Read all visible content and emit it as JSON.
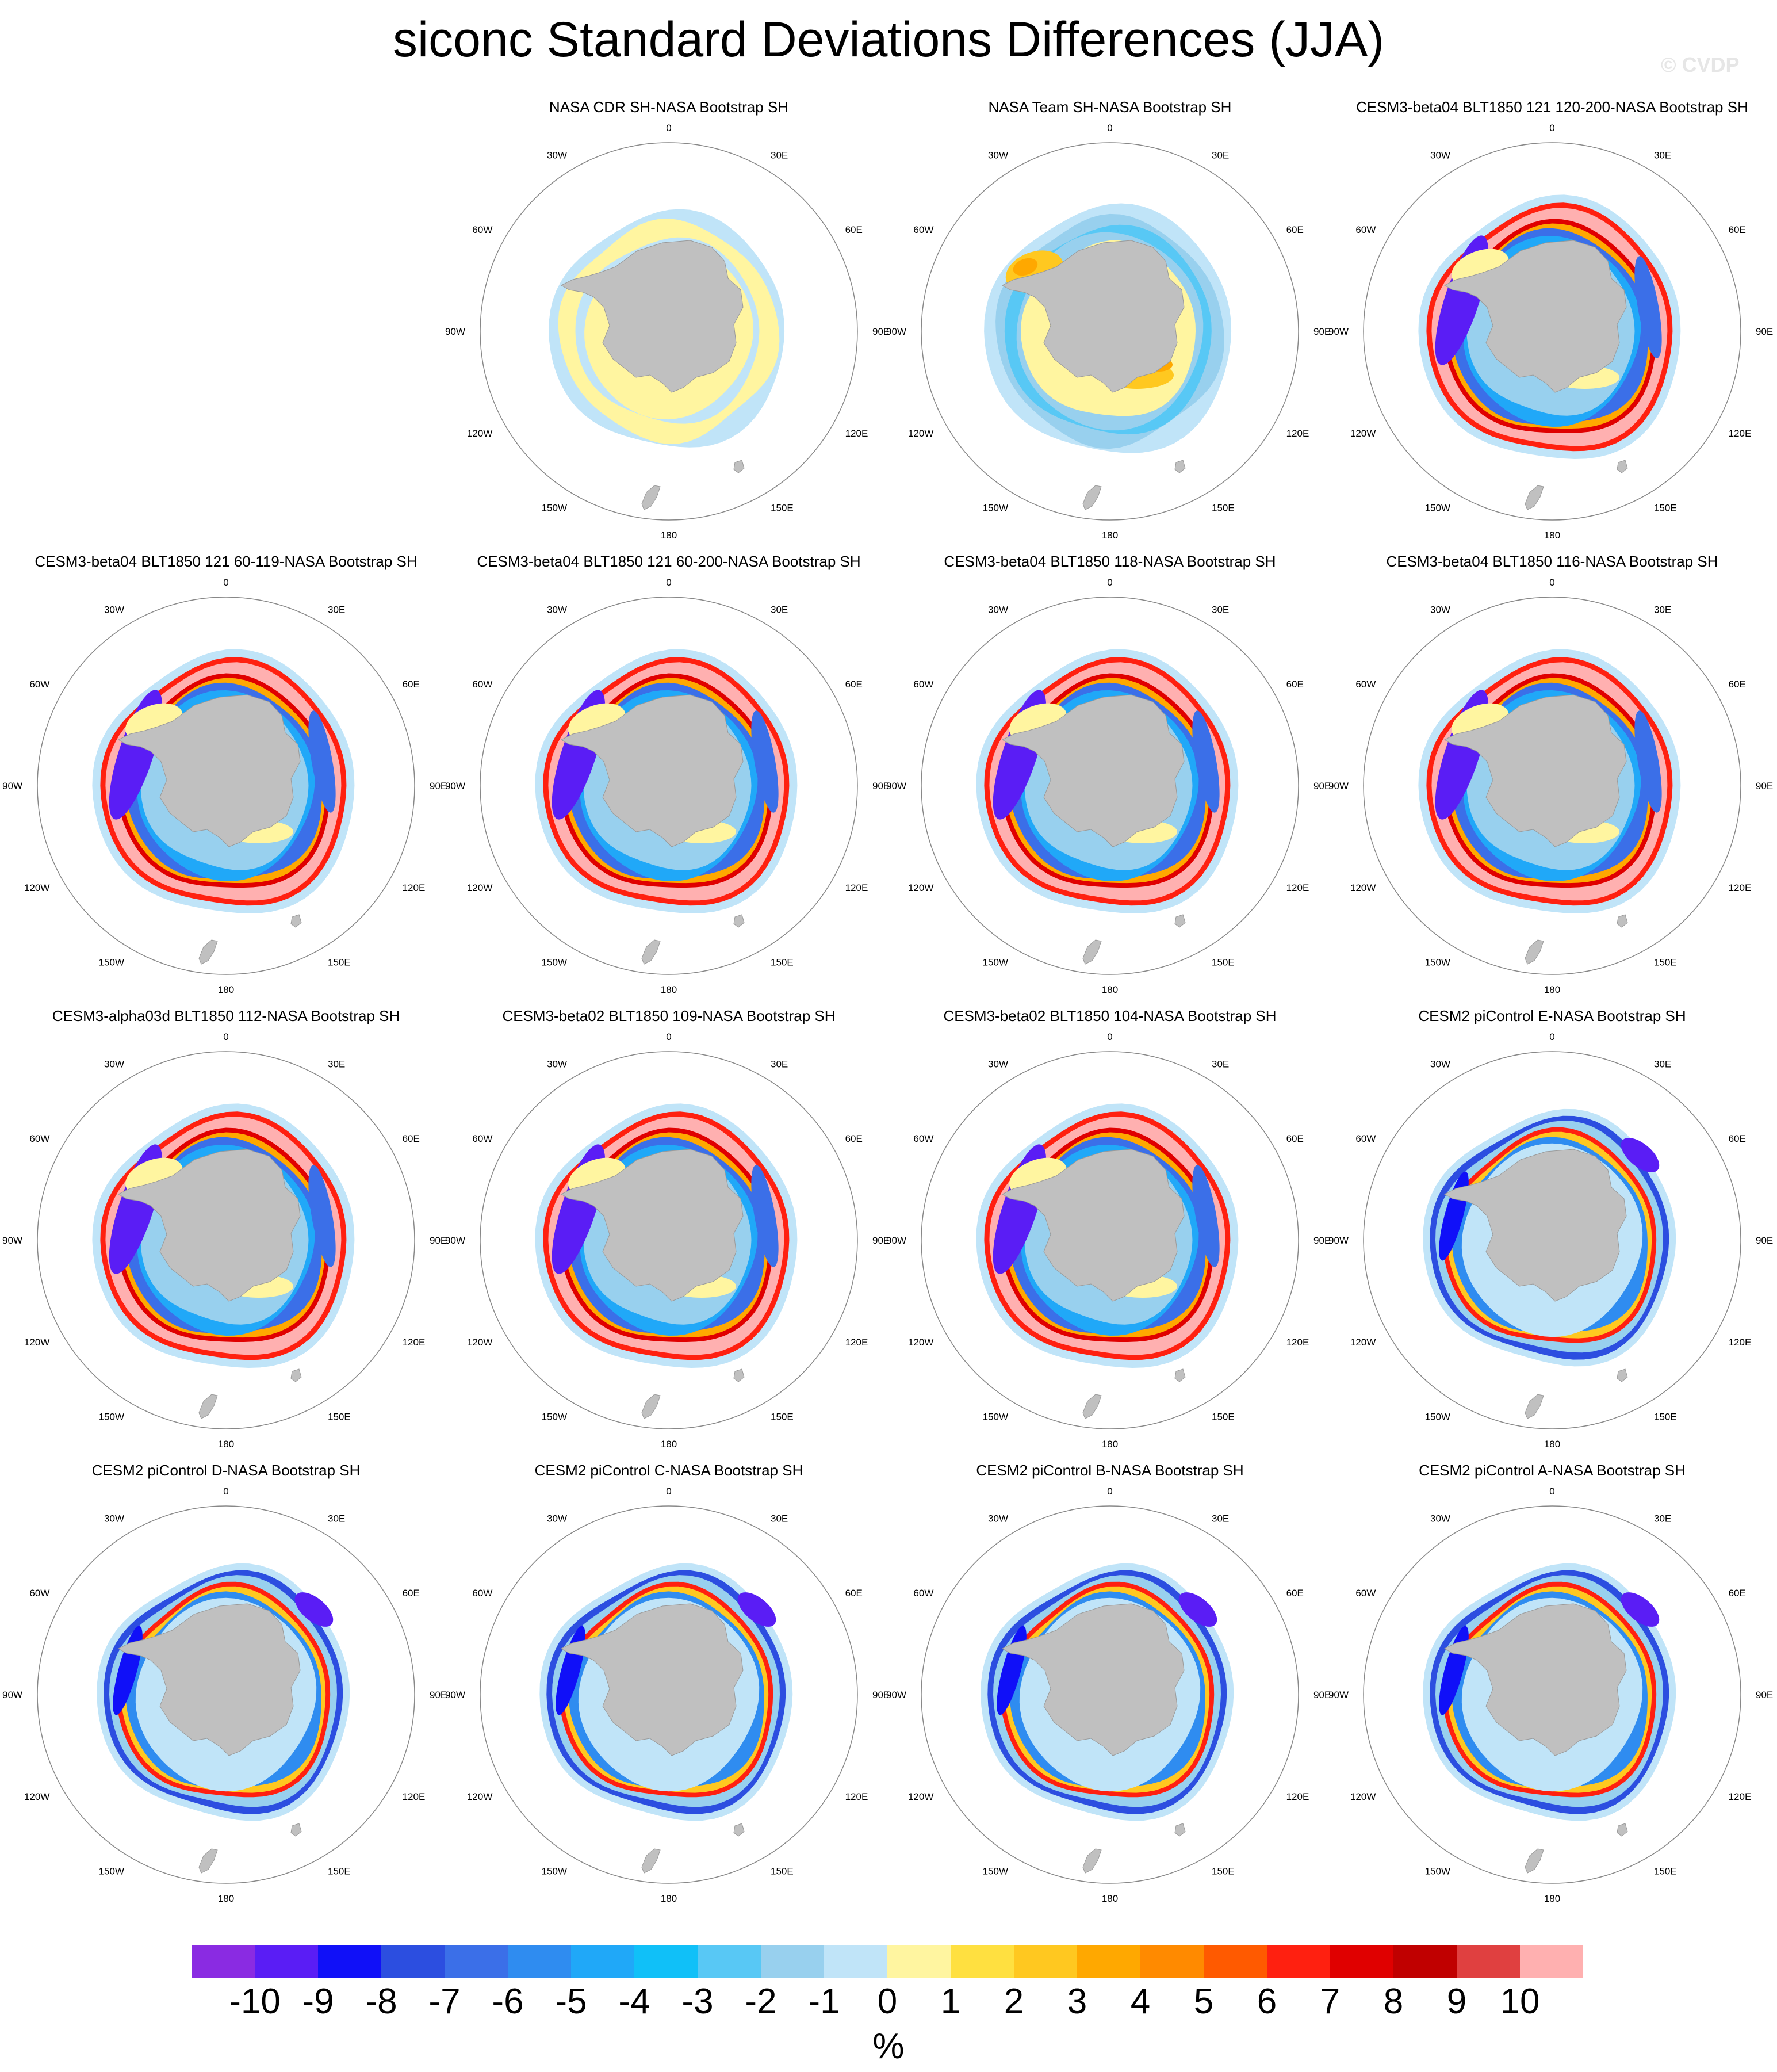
{
  "title": "siconc Standard Deviations Differences (JJA)",
  "watermark": "© CVDP",
  "units": "%",
  "lon_labels": [
    "0",
    "30E",
    "60E",
    "90E",
    "120E",
    "150E",
    "180",
    "150W",
    "120W",
    "90W",
    "60W",
    "30W"
  ],
  "colorbar": {
    "colors": [
      "#8a2be2",
      "#5a1df5",
      "#1010f8",
      "#2c4ee0",
      "#3b6fe8",
      "#2f8cf0",
      "#20a8f8",
      "#10c0f8",
      "#58c8f5",
      "#98d0ee",
      "#c0e4f8",
      "#fff5a0",
      "#ffe040",
      "#ffc820",
      "#ffa800",
      "#ff8a00",
      "#ff5a00",
      "#ff2010",
      "#e00000",
      "#c00000",
      "#e04040",
      "#ffb0b0"
    ],
    "labels": [
      "-10",
      "-9",
      "-8",
      "-7",
      "-6",
      "-5",
      "-4",
      "-3",
      "-2",
      "-1",
      "0",
      "1",
      "2",
      "3",
      "4",
      "5",
      "6",
      "7",
      "8",
      "9",
      "10"
    ]
  },
  "panels": [
    {
      "title": "NASA CDR SH-NASA Bootstrap SH",
      "pattern": "obs-cdr"
    },
    {
      "title": "NASA Team SH-NASA Bootstrap SH",
      "pattern": "obs-team"
    },
    {
      "title": "CESM3-beta04 BLT1850 121 120-200-NASA Bootstrap SH",
      "pattern": "cesm3"
    },
    {
      "title": "CESM3-beta04 BLT1850 121 60-119-NASA Bootstrap SH",
      "pattern": "cesm3"
    },
    {
      "title": "CESM3-beta04 BLT1850 121 60-200-NASA Bootstrap SH",
      "pattern": "cesm3"
    },
    {
      "title": "CESM3-beta04 BLT1850 118-NASA Bootstrap SH",
      "pattern": "cesm3"
    },
    {
      "title": "CESM3-beta04 BLT1850 116-NASA Bootstrap SH",
      "pattern": "cesm3"
    },
    {
      "title": "CESM3-alpha03d BLT1850 112-NASA Bootstrap SH",
      "pattern": "cesm3"
    },
    {
      "title": "CESM3-beta02 BLT1850 109-NASA Bootstrap SH",
      "pattern": "cesm3"
    },
    {
      "title": "CESM3-beta02 BLT1850 104-NASA Bootstrap SH",
      "pattern": "cesm3"
    },
    {
      "title": "CESM2 piControl E-NASA Bootstrap SH",
      "pattern": "cesm2"
    },
    {
      "title": "CESM2 piControl D-NASA Bootstrap SH",
      "pattern": "cesm2"
    },
    {
      "title": "CESM2 piControl C-NASA Bootstrap SH",
      "pattern": "cesm2"
    },
    {
      "title": "CESM2 piControl B-NASA Bootstrap SH",
      "pattern": "cesm2"
    },
    {
      "title": "CESM2 piControl A-NASA Bootstrap SH",
      "pattern": "cesm2"
    }
  ]
}
